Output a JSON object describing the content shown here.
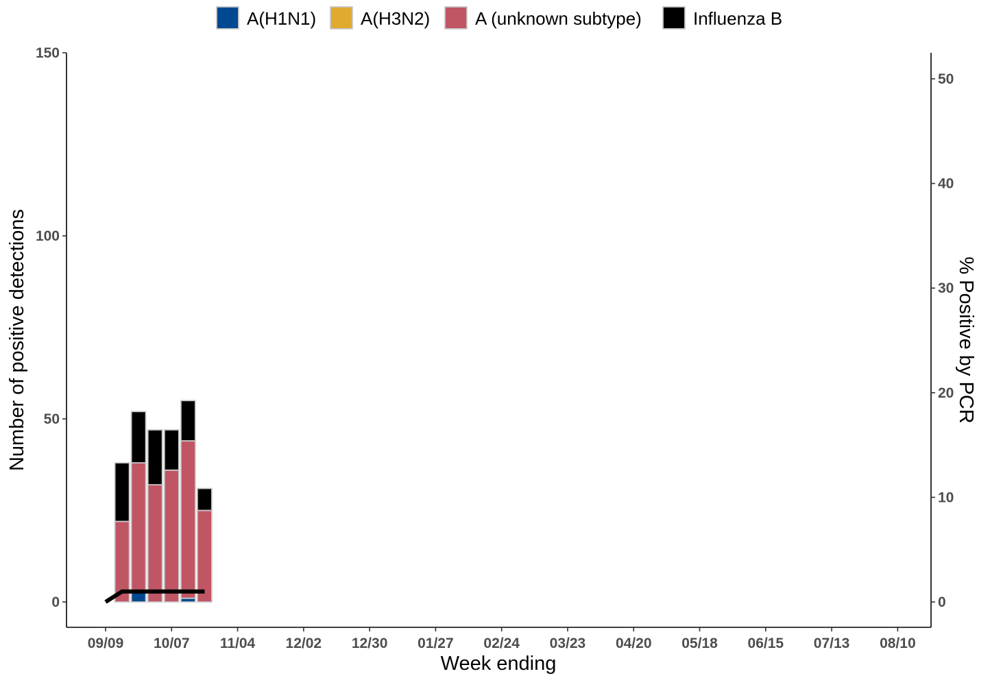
{
  "chart_data": {
    "type": "bar",
    "xlabel": "Week ending",
    "ylabel_left": "Number of positive detections",
    "ylabel_right": "% Positive by PCR",
    "x_tick_labels": [
      "09/09",
      "10/07",
      "11/04",
      "12/02",
      "12/30",
      "01/27",
      "02/24",
      "03/23",
      "04/20",
      "05/18",
      "06/15",
      "07/13",
      "08/10"
    ],
    "left_ylim": [
      0,
      150
    ],
    "left_ticks": [
      0,
      50,
      100,
      150
    ],
    "right_ylim": [
      0,
      50
    ],
    "right_ticks": [
      0,
      10,
      20,
      30,
      40,
      50
    ],
    "grid": false,
    "legend_position": "top",
    "stacked": true,
    "categories": [
      "09/16",
      "09/23",
      "09/30",
      "10/07",
      "10/14",
      "10/21"
    ],
    "series": [
      {
        "name": "A(H1N1)",
        "color": "#00488f",
        "values": [
          0,
          3,
          0,
          0,
          1,
          0
        ]
      },
      {
        "name": "A(H3N2)",
        "color": "#e0a92f",
        "values": [
          0,
          0,
          0,
          0,
          0,
          0
        ]
      },
      {
        "name": "A (unknown subtype)",
        "color": "#c05564",
        "values": [
          22,
          35,
          32,
          36,
          43,
          25
        ]
      },
      {
        "name": "Influenza B",
        "color": "#000000",
        "values": [
          16,
          14,
          15,
          11,
          11,
          6
        ]
      }
    ],
    "line": {
      "axis": "right",
      "color": "#000000",
      "x": [
        "09/09",
        "09/16",
        "09/23",
        "09/30",
        "10/07",
        "10/14",
        "10/21"
      ],
      "values": [
        0,
        1,
        1,
        1,
        1,
        1,
        1
      ]
    }
  }
}
